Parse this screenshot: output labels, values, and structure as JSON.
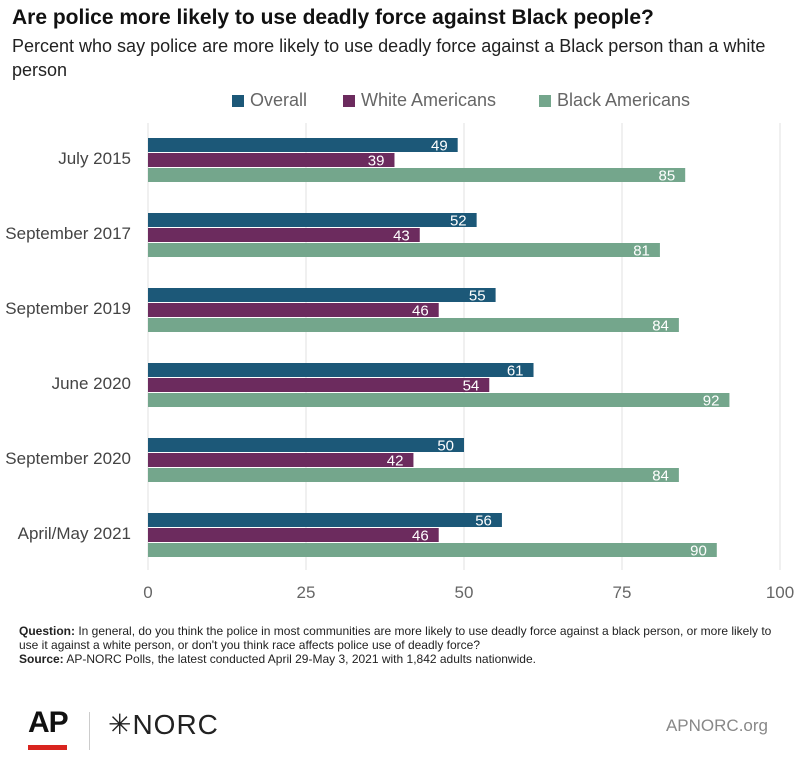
{
  "header": {
    "title": "Are police more likely to use deadly force against Black people?",
    "subtitle": "Percent who say police are more likely to use deadly force against a Black person than a white person"
  },
  "chart_data": {
    "type": "bar",
    "orientation": "horizontal",
    "title": "Are police more likely to use deadly force against Black people?",
    "subtitle": "Percent who say police are more likely to use deadly force against a Black person than a white person",
    "categories": [
      "July 2015",
      "September 2017",
      "September 2019",
      "June 2020",
      "September 2020",
      "April/May 2021"
    ],
    "series": [
      {
        "name": "Overall",
        "color": "#1c5878",
        "values": [
          49,
          52,
          55,
          61,
          50,
          56
        ]
      },
      {
        "name": "White Americans",
        "color": "#6c2b5e",
        "values": [
          39,
          43,
          46,
          54,
          42,
          46
        ]
      },
      {
        "name": "Black Americans",
        "color": "#74a68c",
        "values": [
          85,
          81,
          84,
          92,
          84,
          90
        ]
      }
    ],
    "xlim": [
      0,
      100
    ],
    "xticks": [
      "0",
      "25",
      "50",
      "75",
      "100"
    ],
    "xlabel": "",
    "ylabel": "",
    "grid": true,
    "legend_position": "top"
  },
  "footnote": {
    "question_label": "Question:",
    "question_text": "In general, do you think the police in most communities are more likely to use deadly force against a black person, or more likely to use it against a white person, or don't you think race affects police use of deadly force?",
    "source_label": "Source:",
    "source_text": "AP-NORC Polls, the latest conducted April 29-May 3, 2021 with 1,842 adults nationwide."
  },
  "footer": {
    "ap_logo": "AP",
    "norc_logo": "✳NORC",
    "url": "APNORC.org"
  }
}
